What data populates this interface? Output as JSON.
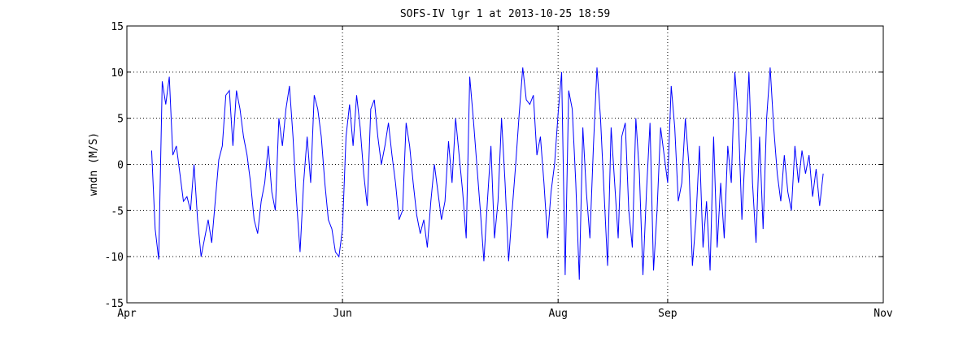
{
  "chart_data": {
    "type": "line",
    "title": "SOFS-IV lgr 1 at 2013-10-25 18:59",
    "xlabel": "",
    "ylabel": "wndn (M/S)",
    "xlim": [
      "2013-04-01",
      "2013-11-01"
    ],
    "ylim": [
      -15,
      15
    ],
    "x_ticks": [
      {
        "label": "Apr",
        "date": "2013-04-01"
      },
      {
        "label": "Jun",
        "date": "2013-06-01"
      },
      {
        "label": "Aug",
        "date": "2013-08-01"
      },
      {
        "label": "Sep",
        "date": "2013-09-01"
      },
      {
        "label": "Nov",
        "date": "2013-11-01"
      }
    ],
    "y_ticks": [
      -15,
      -10,
      -5,
      0,
      5,
      10,
      15
    ],
    "grid": "dotted",
    "legend": "none",
    "series_color": "#0000ff",
    "series": [
      {
        "values": [
          [
            "2013-04-08",
            1.5
          ],
          [
            "2013-04-09",
            -7.0
          ],
          [
            "2013-04-10",
            -10.3
          ],
          [
            "2013-04-11",
            9.0
          ],
          [
            "2013-04-12",
            6.5
          ],
          [
            "2013-04-13",
            9.5
          ],
          [
            "2013-04-14",
            1.0
          ],
          [
            "2013-04-15",
            2.0
          ],
          [
            "2013-04-16",
            -1.0
          ],
          [
            "2013-04-17",
            -4.0
          ],
          [
            "2013-04-18",
            -3.5
          ],
          [
            "2013-04-19",
            -5.0
          ],
          [
            "2013-04-20",
            0.0
          ],
          [
            "2013-04-21",
            -6.0
          ],
          [
            "2013-04-22",
            -10.0
          ],
          [
            "2013-04-23",
            -8.0
          ],
          [
            "2013-04-24",
            -6.0
          ],
          [
            "2013-04-25",
            -8.5
          ],
          [
            "2013-04-26",
            -4.0
          ],
          [
            "2013-04-27",
            0.5
          ],
          [
            "2013-04-28",
            2.0
          ],
          [
            "2013-04-29",
            7.5
          ],
          [
            "2013-04-30",
            8.0
          ],
          [
            "2013-05-01",
            2.0
          ],
          [
            "2013-05-02",
            8.0
          ],
          [
            "2013-05-03",
            6.0
          ],
          [
            "2013-05-04",
            3.0
          ],
          [
            "2013-05-05",
            1.0
          ],
          [
            "2013-05-06",
            -2.0
          ],
          [
            "2013-05-07",
            -6.0
          ],
          [
            "2013-05-08",
            -7.5
          ],
          [
            "2013-05-09",
            -4.0
          ],
          [
            "2013-05-10",
            -2.0
          ],
          [
            "2013-05-11",
            2.0
          ],
          [
            "2013-05-12",
            -3.0
          ],
          [
            "2013-05-13",
            -5.0
          ],
          [
            "2013-05-14",
            5.0
          ],
          [
            "2013-05-15",
            2.0
          ],
          [
            "2013-05-16",
            6.0
          ],
          [
            "2013-05-17",
            8.5
          ],
          [
            "2013-05-18",
            3.0
          ],
          [
            "2013-05-19",
            -4.0
          ],
          [
            "2013-05-20",
            -9.5
          ],
          [
            "2013-05-21",
            -2.0
          ],
          [
            "2013-05-22",
            3.0
          ],
          [
            "2013-05-23",
            -2.0
          ],
          [
            "2013-05-24",
            7.5
          ],
          [
            "2013-05-25",
            6.0
          ],
          [
            "2013-05-26",
            3.0
          ],
          [
            "2013-05-27",
            -2.0
          ],
          [
            "2013-05-28",
            -6.0
          ],
          [
            "2013-05-29",
            -7.0
          ],
          [
            "2013-05-30",
            -9.5
          ],
          [
            "2013-05-31",
            -10.0
          ],
          [
            "2013-06-01",
            -7.0
          ],
          [
            "2013-06-02",
            3.0
          ],
          [
            "2013-06-03",
            6.5
          ],
          [
            "2013-06-04",
            2.0
          ],
          [
            "2013-06-05",
            7.5
          ],
          [
            "2013-06-06",
            4.0
          ],
          [
            "2013-06-07",
            -1.0
          ],
          [
            "2013-06-08",
            -4.5
          ],
          [
            "2013-06-09",
            6.0
          ],
          [
            "2013-06-10",
            7.0
          ],
          [
            "2013-06-11",
            3.0
          ],
          [
            "2013-06-12",
            0.0
          ],
          [
            "2013-06-13",
            2.0
          ],
          [
            "2013-06-14",
            4.5
          ],
          [
            "2013-06-15",
            1.0
          ],
          [
            "2013-06-16",
            -2.0
          ],
          [
            "2013-06-17",
            -6.0
          ],
          [
            "2013-06-18",
            -5.0
          ],
          [
            "2013-06-19",
            4.5
          ],
          [
            "2013-06-20",
            2.0
          ],
          [
            "2013-06-21",
            -2.0
          ],
          [
            "2013-06-22",
            -5.5
          ],
          [
            "2013-06-23",
            -7.5
          ],
          [
            "2013-06-24",
            -6.0
          ],
          [
            "2013-06-25",
            -9.0
          ],
          [
            "2013-06-26",
            -4.0
          ],
          [
            "2013-06-27",
            0.0
          ],
          [
            "2013-06-28",
            -3.0
          ],
          [
            "2013-06-29",
            -6.0
          ],
          [
            "2013-06-30",
            -4.0
          ],
          [
            "2013-07-01",
            2.5
          ],
          [
            "2013-07-02",
            -2.0
          ],
          [
            "2013-07-03",
            5.0
          ],
          [
            "2013-07-04",
            1.0
          ],
          [
            "2013-07-05",
            -3.0
          ],
          [
            "2013-07-06",
            -8.0
          ],
          [
            "2013-07-07",
            9.5
          ],
          [
            "2013-07-08",
            5.0
          ],
          [
            "2013-07-09",
            0.0
          ],
          [
            "2013-07-10",
            -5.0
          ],
          [
            "2013-07-11",
            -10.5
          ],
          [
            "2013-07-12",
            -4.0
          ],
          [
            "2013-07-13",
            2.0
          ],
          [
            "2013-07-14",
            -8.0
          ],
          [
            "2013-07-15",
            -4.0
          ],
          [
            "2013-07-16",
            5.0
          ],
          [
            "2013-07-17",
            -2.0
          ],
          [
            "2013-07-18",
            -10.5
          ],
          [
            "2013-07-19",
            -5.0
          ],
          [
            "2013-07-20",
            0.0
          ],
          [
            "2013-07-21",
            5.5
          ],
          [
            "2013-07-22",
            10.5
          ],
          [
            "2013-07-23",
            7.0
          ],
          [
            "2013-07-24",
            6.5
          ],
          [
            "2013-07-25",
            7.5
          ],
          [
            "2013-07-26",
            1.0
          ],
          [
            "2013-07-27",
            3.0
          ],
          [
            "2013-07-28",
            -2.0
          ],
          [
            "2013-07-29",
            -8.0
          ],
          [
            "2013-07-30",
            -3.0
          ],
          [
            "2013-07-31",
            0.0
          ],
          [
            "2013-08-01",
            5.5
          ],
          [
            "2013-08-02",
            10.0
          ],
          [
            "2013-08-03",
            -12.0
          ],
          [
            "2013-08-04",
            8.0
          ],
          [
            "2013-08-05",
            6.0
          ],
          [
            "2013-08-06",
            -2.0
          ],
          [
            "2013-08-07",
            -12.5
          ],
          [
            "2013-08-08",
            4.0
          ],
          [
            "2013-08-09",
            -3.0
          ],
          [
            "2013-08-10",
            -8.0
          ],
          [
            "2013-08-11",
            2.0
          ],
          [
            "2013-08-12",
            10.5
          ],
          [
            "2013-08-13",
            5.0
          ],
          [
            "2013-08-14",
            -3.0
          ],
          [
            "2013-08-15",
            -11.0
          ],
          [
            "2013-08-16",
            4.0
          ],
          [
            "2013-08-17",
            -2.0
          ],
          [
            "2013-08-18",
            -8.0
          ],
          [
            "2013-08-19",
            3.0
          ],
          [
            "2013-08-20",
            4.5
          ],
          [
            "2013-08-21",
            -5.0
          ],
          [
            "2013-08-22",
            -9.0
          ],
          [
            "2013-08-23",
            5.0
          ],
          [
            "2013-08-24",
            -1.0
          ],
          [
            "2013-08-25",
            -12.0
          ],
          [
            "2013-08-26",
            -3.0
          ],
          [
            "2013-08-27",
            4.5
          ],
          [
            "2013-08-28",
            -11.5
          ],
          [
            "2013-08-29",
            -5.0
          ],
          [
            "2013-08-30",
            4.0
          ],
          [
            "2013-08-31",
            1.0
          ],
          [
            "2013-09-01",
            -2.0
          ],
          [
            "2013-09-02",
            8.5
          ],
          [
            "2013-09-03",
            4.0
          ],
          [
            "2013-09-04",
            -4.0
          ],
          [
            "2013-09-05",
            -2.0
          ],
          [
            "2013-09-06",
            5.0
          ],
          [
            "2013-09-07",
            0.0
          ],
          [
            "2013-09-08",
            -11.0
          ],
          [
            "2013-09-09",
            -6.0
          ],
          [
            "2013-09-10",
            2.0
          ],
          [
            "2013-09-11",
            -9.0
          ],
          [
            "2013-09-12",
            -4.0
          ],
          [
            "2013-09-13",
            -11.5
          ],
          [
            "2013-09-14",
            3.0
          ],
          [
            "2013-09-15",
            -9.0
          ],
          [
            "2013-09-16",
            -2.0
          ],
          [
            "2013-09-17",
            -8.0
          ],
          [
            "2013-09-18",
            2.0
          ],
          [
            "2013-09-19",
            -2.0
          ],
          [
            "2013-09-20",
            10.0
          ],
          [
            "2013-09-21",
            5.0
          ],
          [
            "2013-09-22",
            -6.0
          ],
          [
            "2013-09-23",
            2.0
          ],
          [
            "2013-09-24",
            10.0
          ],
          [
            "2013-09-25",
            -2.0
          ],
          [
            "2013-09-26",
            -8.5
          ],
          [
            "2013-09-27",
            3.0
          ],
          [
            "2013-09-28",
            -7.0
          ],
          [
            "2013-09-29",
            5.0
          ],
          [
            "2013-09-30",
            10.5
          ],
          [
            "2013-10-01",
            4.0
          ],
          [
            "2013-10-02",
            -1.0
          ],
          [
            "2013-10-03",
            -4.0
          ],
          [
            "2013-10-04",
            1.0
          ],
          [
            "2013-10-05",
            -3.0
          ],
          [
            "2013-10-06",
            -5.0
          ],
          [
            "2013-10-07",
            2.0
          ],
          [
            "2013-10-08",
            -2.0
          ],
          [
            "2013-10-09",
            1.5
          ],
          [
            "2013-10-10",
            -1.0
          ],
          [
            "2013-10-11",
            1.0
          ],
          [
            "2013-10-12",
            -3.5
          ],
          [
            "2013-10-13",
            -0.5
          ],
          [
            "2013-10-14",
            -4.5
          ],
          [
            "2013-10-15",
            -1.0
          ]
        ]
      }
    ]
  }
}
